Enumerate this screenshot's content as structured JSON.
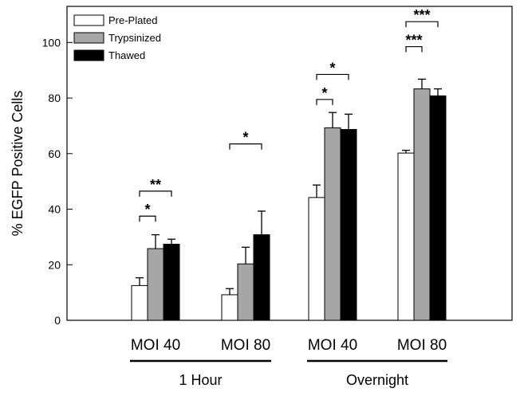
{
  "chart_data": {
    "type": "bar",
    "title": "",
    "xlabel": "",
    "ylabel": "% EGFP Positive Cells",
    "ylim": [
      0,
      113
    ],
    "yticks": [
      0,
      20,
      40,
      60,
      80,
      100
    ],
    "legend_position": "top-left",
    "categories": [
      "MOI 40",
      "MOI 80",
      "MOI 40",
      "MOI 80"
    ],
    "groups": [
      {
        "label": "1 Hour",
        "categories": [
          0,
          1
        ]
      },
      {
        "label": "Overnight",
        "categories": [
          2,
          3
        ]
      }
    ],
    "series": [
      {
        "name": "Pre-Plated",
        "color": "#ffffff",
        "values": [
          12.5,
          9.2,
          44.2,
          60.2
        ],
        "errors": [
          2.8,
          2.2,
          4.5,
          1.0
        ]
      },
      {
        "name": "Trypsinized",
        "color": "#a6a6a6",
        "values": [
          25.8,
          20.3,
          69.3,
          83.3
        ],
        "errors": [
          5.0,
          6.0,
          5.5,
          3.5
        ]
      },
      {
        "name": "Thawed",
        "color": "#000000",
        "values": [
          27.4,
          30.8,
          68.7,
          80.8
        ],
        "errors": [
          1.8,
          8.5,
          5.5,
          2.5
        ]
      }
    ],
    "significance": [
      {
        "category": 0,
        "from": 0,
        "to": 1,
        "y": 37.5,
        "label": "*"
      },
      {
        "category": 0,
        "from": 0,
        "to": 2,
        "y": 46.5,
        "label": "**"
      },
      {
        "category": 1,
        "from": 0,
        "to": 2,
        "y": 63.5,
        "label": "*"
      },
      {
        "category": 2,
        "from": 0,
        "to": 1,
        "y": 79.5,
        "label": "*"
      },
      {
        "category": 2,
        "from": 0,
        "to": 2,
        "y": 88.5,
        "label": "*"
      },
      {
        "category": 3,
        "from": 0,
        "to": 1,
        "y": 98.5,
        "label": "***"
      },
      {
        "category": 3,
        "from": 0,
        "to": 2,
        "y": 107.5,
        "label": "***"
      }
    ]
  }
}
